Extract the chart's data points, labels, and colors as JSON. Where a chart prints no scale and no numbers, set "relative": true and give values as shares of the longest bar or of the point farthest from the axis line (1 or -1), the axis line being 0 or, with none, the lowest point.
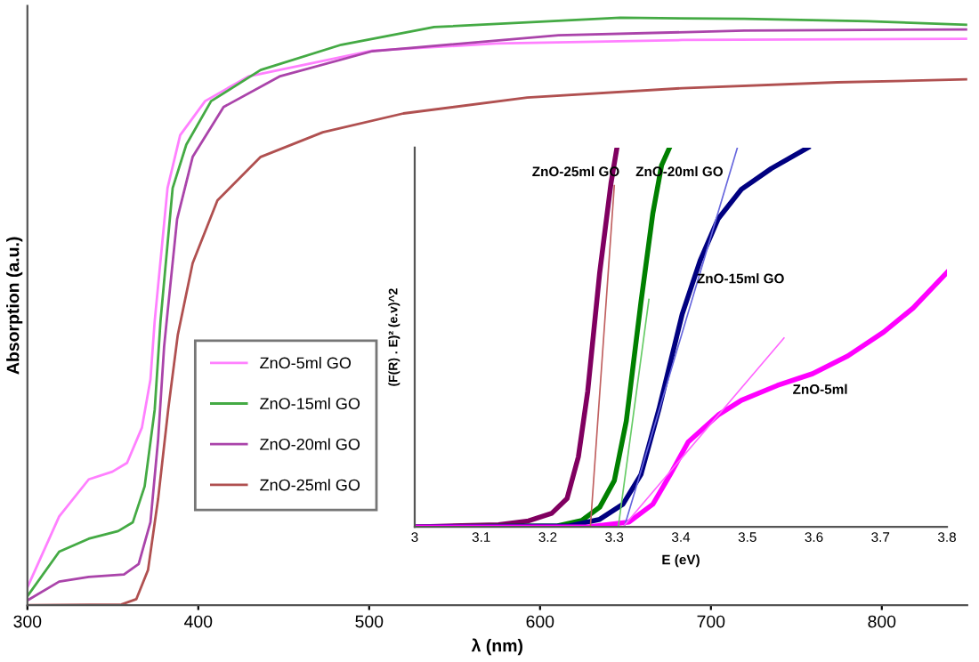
{
  "chart_data": [
    {
      "type": "line",
      "xlabel": "λ (nm)",
      "ylabel": "Absorption (a.u.)",
      "relative": true,
      "xlim": [
        300,
        850
      ],
      "xticks": [
        300,
        400,
        500,
        600,
        700,
        800
      ],
      "legend": "left",
      "series": [
        {
          "name": "ZnO-5ml GO",
          "color": "#ff80ff",
          "x": [
            300,
            318.6,
            335.9,
            349.7,
            358.3,
            367,
            372,
            374.5,
            382,
            389.4,
            404,
            429.3,
            465.6,
            501.9,
            574.4,
            683.1,
            850
          ],
          "values": [
            0.03,
            0.151,
            0.214,
            0.227,
            0.242,
            0.302,
            0.384,
            0.484,
            0.71,
            0.8,
            0.858,
            0.9,
            0.922,
            0.944,
            0.956,
            0.962,
            0.964
          ]
        },
        {
          "name": "ZnO-15ml GO",
          "color": "#44aa44",
          "x": [
            300,
            318.6,
            335.9,
            353.1,
            361.7,
            368.6,
            374.5,
            377.9,
            385,
            393,
            407.5,
            436.5,
            483.7,
            538,
            647,
            719.5,
            792,
            850
          ],
          "values": [
            0.015,
            0.091,
            0.113,
            0.126,
            0.141,
            0.202,
            0.333,
            0.484,
            0.71,
            0.784,
            0.858,
            0.911,
            0.954,
            0.984,
            1,
            0.998,
            0.994,
            0.988
          ]
        },
        {
          "name": "ZnO-20ml GO",
          "color": "#aa44aa",
          "x": [
            300,
            318.6,
            335.9,
            356.5,
            365.1,
            372,
            376.5,
            380,
            382,
            387.6,
            396.7,
            414.8,
            447.5,
            501.9,
            610.8,
            719.5,
            850
          ],
          "values": [
            0.008,
            0.04,
            0.048,
            0.052,
            0.07,
            0.141,
            0.282,
            0.44,
            0.498,
            0.657,
            0.763,
            0.848,
            0.9,
            0.943,
            0.97,
            0.978,
            0.98
          ]
        },
        {
          "name": "ZnO-25ml GO",
          "color": "#b05050",
          "x": [
            300,
            355,
            363.7,
            370.6,
            376.5,
            382.4,
            388,
            396.7,
            411.2,
            436.5,
            472.9,
            520,
            592.5,
            683.1,
            774,
            850
          ],
          "values": [
            0,
            0.001,
            0.01,
            0.06,
            0.181,
            0.333,
            0.46,
            0.582,
            0.689,
            0.763,
            0.805,
            0.837,
            0.864,
            0.88,
            0.89,
            0.895
          ]
        }
      ]
    },
    {
      "type": "line",
      "xlabel": "E (eV)",
      "ylabel": "(F(R) . E)² (e.v)^2",
      "relative": true,
      "xlim": [
        3,
        3.8
      ],
      "xticks": [
        3,
        3.1,
        3.2,
        3.3,
        3.4,
        3.5,
        3.6,
        3.7,
        3.8
      ],
      "series": [
        {
          "name": "ZnO-25ml GO",
          "color": "#800060",
          "x": [
            3,
            3.126,
            3.171,
            3.206,
            3.229,
            3.246,
            3.26,
            3.278,
            3.295,
            3.304
          ],
          "values": [
            0,
            0.006,
            0.016,
            0.036,
            0.075,
            0.185,
            0.357,
            0.67,
            0.906,
            1
          ]
        },
        {
          "name": "ZnO-20ml GO",
          "color": "#008000",
          "x": [
            3,
            3.215,
            3.251,
            3.278,
            3.3,
            3.318,
            3.34,
            3.358,
            3.371,
            3.383
          ],
          "values": [
            0,
            0.003,
            0.017,
            0.052,
            0.122,
            0.279,
            0.592,
            0.828,
            0.953,
            1
          ]
        },
        {
          "name": "ZnO-15ml GO",
          "color": "#000080",
          "x": [
            3,
            3.233,
            3.278,
            3.313,
            3.34,
            3.367,
            3.402,
            3.429,
            3.456,
            3.491,
            3.536,
            3.591
          ],
          "values": [
            0,
            0.003,
            0.02,
            0.06,
            0.138,
            0.31,
            0.561,
            0.702,
            0.812,
            0.89,
            0.945,
            1
          ]
        },
        {
          "name": "ZnO-5ml",
          "color": "#ff00ff",
          "x": [
            3,
            3.26,
            3.322,
            3.358,
            3.384,
            3.411,
            3.456,
            3.491,
            3.545,
            3.598,
            3.651,
            3.705,
            3.749,
            3.8
          ],
          "values": [
            0,
            0,
            0.013,
            0.06,
            0.138,
            0.224,
            0.295,
            0.334,
            0.373,
            0.404,
            0.451,
            0.514,
            0.577,
            0.671
          ]
        },
        {
          "color": "#c06060",
          "x": [
            3.264,
            3.3
          ],
          "values": [
            0,
            0.9
          ]
        },
        {
          "color": "#66cc66",
          "x": [
            3.306,
            3.352
          ],
          "values": [
            0,
            0.6
          ]
        },
        {
          "color": "#6666dd",
          "x": [
            3.315,
            3.485
          ],
          "values": [
            0,
            1
          ]
        },
        {
          "color": "#ff66ff",
          "x": [
            3.313,
            3.555
          ],
          "values": [
            0,
            0.498
          ]
        }
      ]
    }
  ]
}
